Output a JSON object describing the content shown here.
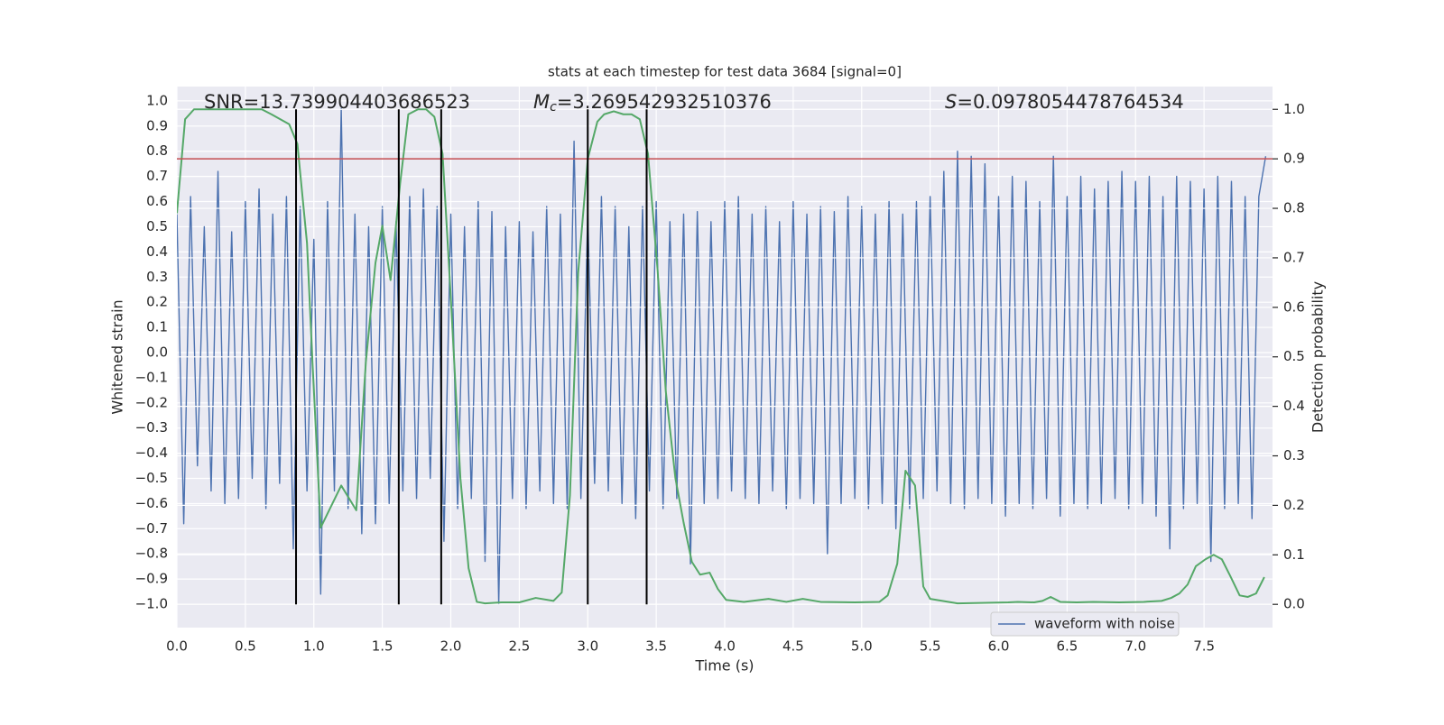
{
  "chart_data": {
    "type": "line",
    "title": "stats at each timestep for test data 3684 [signal=0]",
    "xlabel": "Time (s)",
    "ylabel": "Whitened strain",
    "y2label": "Detection probability",
    "xlim": [
      0,
      8
    ],
    "ylim": [
      -1.093,
      1.057
    ],
    "y2lim": [
      -0.047,
      1.046
    ],
    "xticks": [
      {
        "value": 0,
        "label": "0.0"
      },
      0.5,
      {
        "value": 1,
        "label": "1.0"
      },
      1.5,
      {
        "value": 2,
        "label": "2.0"
      },
      2.5,
      {
        "value": 3,
        "label": "3.0"
      },
      3.5,
      {
        "value": 4,
        "label": "4.0"
      },
      4.5,
      {
        "value": 5,
        "label": "5.0"
      },
      5.5,
      {
        "value": 6,
        "label": "6.0"
      },
      6.5,
      {
        "value": 7,
        "label": "7.0"
      },
      7.5
    ],
    "yticks": [
      {
        "value": -1,
        "label": "−1.0"
      },
      {
        "value": -0.9,
        "label": "−0.9"
      },
      {
        "value": -0.8,
        "label": "−0.8"
      },
      {
        "value": -0.7,
        "label": "−0.7"
      },
      {
        "value": -0.6,
        "label": "−0.6"
      },
      {
        "value": -0.5,
        "label": "−0.5"
      },
      {
        "value": -0.4,
        "label": "−0.4"
      },
      {
        "value": -0.3,
        "label": "−0.3"
      },
      {
        "value": -0.2,
        "label": "−0.2"
      },
      {
        "value": -0.1,
        "label": "−0.1"
      },
      {
        "value": 0,
        "label": "0.0"
      },
      0.1,
      0.2,
      0.3,
      0.4,
      0.5,
      0.6,
      0.7,
      0.8,
      0.9,
      {
        "value": 1,
        "label": "1.0"
      }
    ],
    "y2ticks": [
      {
        "value": 0,
        "label": "0.0"
      },
      0.1,
      0.2,
      0.3,
      0.4,
      0.5,
      0.6,
      0.7,
      0.8,
      0.9,
      {
        "value": 1,
        "label": "1.0"
      }
    ],
    "grid": true,
    "legend": "lower right",
    "annotations": [
      {
        "text": "SNR=13.739904403686523"
      },
      {
        "symbol": "M",
        "subscript": "c",
        "text": "=3.269542932510376"
      },
      {
        "symbol": "S",
        "text": "=0.0978054478764534"
      }
    ],
    "threshold": 0.9,
    "threshold_color": "#c44e52",
    "vlines": [
      0.87,
      1.62,
      1.93,
      3.0,
      3.43
    ],
    "vline_range": [
      0,
      1
    ],
    "vline_color": "#000000",
    "series": [
      {
        "name": "waveform with noise",
        "color": "#4c72b0",
        "x": [
          0,
          0.05,
          0.1,
          0.15,
          0.2,
          0.25,
          0.3,
          0.35,
          0.4,
          0.45,
          0.5,
          0.55,
          0.6,
          0.65,
          0.7,
          0.75,
          0.8,
          0.85,
          0.9,
          0.95,
          1,
          1.05,
          1.1,
          1.15,
          1.2,
          1.25,
          1.3,
          1.35,
          1.4,
          1.45,
          1.5,
          1.55,
          1.6,
          1.65,
          1.7,
          1.75,
          1.8,
          1.85,
          1.9,
          1.95,
          2,
          2.05,
          2.1,
          2.15,
          2.2,
          2.25,
          2.3,
          2.35,
          2.4,
          2.45,
          2.5,
          2.55,
          2.6,
          2.65,
          2.7,
          2.75,
          2.8,
          2.85,
          2.9,
          2.95,
          3,
          3.05,
          3.1,
          3.15,
          3.2,
          3.25,
          3.3,
          3.35,
          3.4,
          3.45,
          3.5,
          3.55,
          3.6,
          3.65,
          3.7,
          3.75,
          3.8,
          3.85,
          3.9,
          3.95,
          4,
          4.05,
          4.1,
          4.15,
          4.2,
          4.25,
          4.3,
          4.35,
          4.4,
          4.45,
          4.5,
          4.55,
          4.6,
          4.65,
          4.7,
          4.75,
          4.8,
          4.85,
          4.9,
          4.95,
          5,
          5.05,
          5.1,
          5.15,
          5.2,
          5.25,
          5.3,
          5.35,
          5.4,
          5.45,
          5.5,
          5.55,
          5.6,
          5.65,
          5.7,
          5.75,
          5.8,
          5.85,
          5.9,
          5.95,
          6,
          6.05,
          6.1,
          6.15,
          6.2,
          6.25,
          6.3,
          6.35,
          6.4,
          6.45,
          6.5,
          6.55,
          6.6,
          6.65,
          6.7,
          6.75,
          6.8,
          6.85,
          6.9,
          6.95,
          7,
          7.05,
          7.1,
          7.15,
          7.2,
          7.25,
          7.3,
          7.35,
          7.4,
          7.45,
          7.5,
          7.55,
          7.6,
          7.65,
          7.7,
          7.75,
          7.8,
          7.85,
          7.9,
          7.95
        ],
        "values": [
          0.55,
          -0.68,
          0.62,
          -0.45,
          0.5,
          -0.55,
          0.72,
          -0.6,
          0.48,
          -0.58,
          0.6,
          -0.5,
          0.65,
          -0.62,
          0.55,
          -0.52,
          0.62,
          -0.78,
          0.58,
          -0.55,
          0.45,
          -0.96,
          0.6,
          -0.55,
          0.97,
          -0.62,
          0.55,
          -0.72,
          0.5,
          -0.68,
          0.58,
          -0.6,
          0.52,
          -0.55,
          0.62,
          -0.58,
          0.65,
          -0.5,
          0.58,
          -0.75,
          0.55,
          -0.62,
          0.5,
          -0.58,
          0.6,
          -0.83,
          0.56,
          -1.0,
          0.5,
          -0.58,
          0.52,
          -0.62,
          0.48,
          -0.55,
          0.58,
          -0.6,
          0.55,
          -0.62,
          0.84,
          -0.58,
          0.56,
          -0.52,
          0.62,
          -0.55,
          0.58,
          -0.6,
          0.5,
          -0.66,
          0.58,
          -0.55,
          0.6,
          -0.62,
          0.52,
          -0.58,
          0.55,
          -0.84,
          0.56,
          -0.6,
          0.52,
          -0.58,
          0.6,
          -0.55,
          0.62,
          -0.58,
          0.55,
          -0.6,
          0.58,
          -0.55,
          0.52,
          -0.62,
          0.6,
          -0.58,
          0.55,
          -0.6,
          0.58,
          -0.8,
          0.56,
          -0.6,
          0.62,
          -0.58,
          0.58,
          -0.62,
          0.55,
          -0.6,
          0.6,
          -0.7,
          0.55,
          -0.62,
          0.6,
          -0.58,
          0.62,
          -0.55,
          0.72,
          -0.6,
          0.8,
          -0.62,
          0.78,
          -0.58,
          0.75,
          -0.6,
          0.62,
          -0.65,
          0.7,
          -0.6,
          0.68,
          -0.62,
          0.6,
          -0.58,
          0.78,
          -0.65,
          0.62,
          -0.6,
          0.7,
          -0.62,
          0.65,
          -0.6,
          0.68,
          -0.58,
          0.72,
          -0.62,
          0.68,
          -0.6,
          0.7,
          -0.65,
          0.62,
          -0.78,
          0.7,
          -0.62,
          0.68,
          -0.6,
          0.65,
          -0.83,
          0.7,
          -0.62,
          0.68,
          -0.6,
          0.62,
          -0.66,
          0.62,
          0.78
        ]
      },
      {
        "color": "#55a868",
        "axis": "y2",
        "x": [
          0,
          0.06,
          0.125,
          0.62,
          0.69,
          0.82,
          0.88,
          0.95,
          0.99,
          1.05,
          1.2,
          1.31,
          1.38,
          1.45,
          1.5,
          1.56,
          1.63,
          1.69,
          1.76,
          1.82,
          1.88,
          1.94,
          2.0,
          2.07,
          2.13,
          2.19,
          2.25,
          2.37,
          2.5,
          2.62,
          2.75,
          2.81,
          2.87,
          2.93,
          3.0,
          3.07,
          3.12,
          3.19,
          3.26,
          3.32,
          3.38,
          3.44,
          3.51,
          3.57,
          3.64,
          3.7,
          3.76,
          3.82,
          3.89,
          3.95,
          4.01,
          4.14,
          4.32,
          4.45,
          4.57,
          4.7,
          4.95,
          5.13,
          5.19,
          5.26,
          5.32,
          5.39,
          5.45,
          5.5,
          5.7,
          6.07,
          6.14,
          6.26,
          6.32,
          6.38,
          6.45,
          6.57,
          6.69,
          6.88,
          7.06,
          7.19,
          7.26,
          7.32,
          7.38,
          7.44,
          7.51,
          7.57,
          7.63,
          7.69,
          7.76,
          7.82,
          7.88,
          7.94
        ],
        "values": [
          0.79,
          0.98,
          1.0,
          1.0,
          0.99,
          0.97,
          0.93,
          0.73,
          0.49,
          0.155,
          0.24,
          0.19,
          0.49,
          0.69,
          0.765,
          0.655,
          0.85,
          0.99,
          1.0,
          1.0,
          0.985,
          0.91,
          0.62,
          0.255,
          0.073,
          0.005,
          0.002,
          0.004,
          0.004,
          0.013,
          0.007,
          0.024,
          0.22,
          0.67,
          0.9,
          0.975,
          0.99,
          0.996,
          0.99,
          0.99,
          0.98,
          0.91,
          0.675,
          0.43,
          0.255,
          0.165,
          0.086,
          0.06,
          0.064,
          0.031,
          0.009,
          0.005,
          0.011,
          0.005,
          0.011,
          0.005,
          0.004,
          0.005,
          0.018,
          0.082,
          0.27,
          0.24,
          0.036,
          0.011,
          0.002,
          0.004,
          0.005,
          0.004,
          0.007,
          0.015,
          0.005,
          0.004,
          0.005,
          0.004,
          0.005,
          0.007,
          0.013,
          0.022,
          0.04,
          0.077,
          0.091,
          0.1,
          0.091,
          0.058,
          0.018,
          0.015,
          0.022,
          0.055
        ]
      }
    ]
  }
}
